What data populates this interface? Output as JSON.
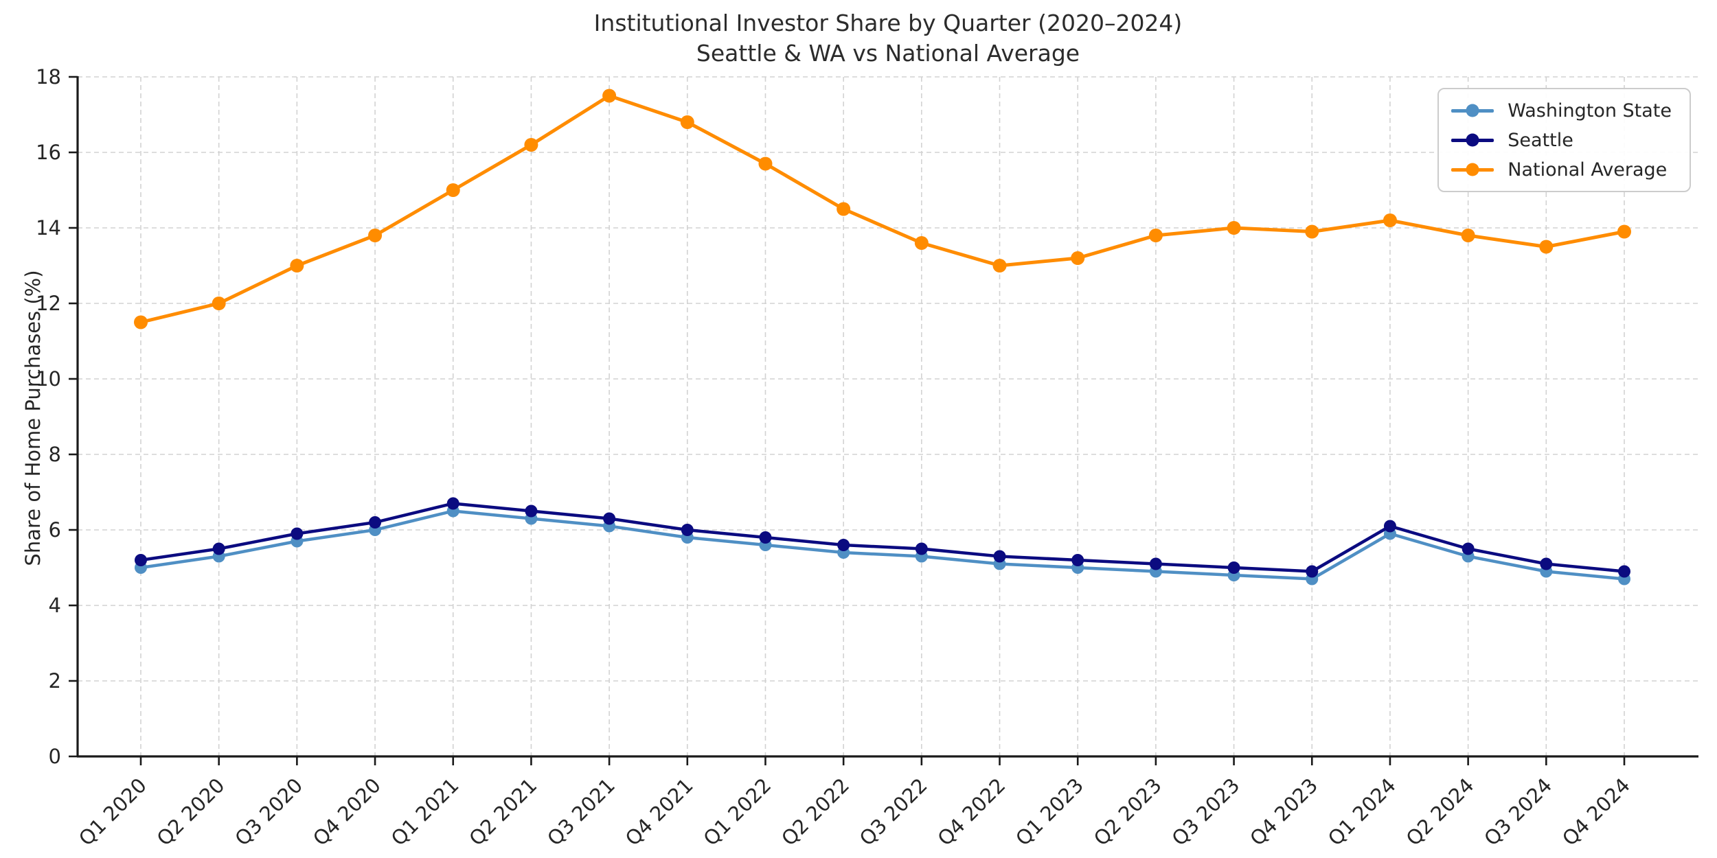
{
  "chart_data": {
    "type": "line",
    "title": "Institutional Investor Share by Quarter (2020–2024)",
    "subtitle": "Seattle & WA vs National Average",
    "ylabel": "Share of Home Purchases (%)",
    "ylim": [
      0,
      18
    ],
    "ytick_step": 2,
    "grid": "dashed-both-axes",
    "legend_position": "top-right",
    "categories": [
      "Q1 2020",
      "Q2 2020",
      "Q3 2020",
      "Q4 2020",
      "Q1 2021",
      "Q2 2021",
      "Q3 2021",
      "Q4 2021",
      "Q1 2022",
      "Q2 2022",
      "Q3 2022",
      "Q4 2022",
      "Q1 2023",
      "Q2 2023",
      "Q3 2023",
      "Q4 2023",
      "Q1 2024",
      "Q2 2024",
      "Q3 2024",
      "Q4 2024"
    ],
    "series": [
      {
        "name": "Washington State",
        "color": "#4f8fc4",
        "values": [
          5.0,
          5.3,
          5.7,
          6.0,
          6.5,
          6.3,
          6.1,
          5.8,
          5.6,
          5.4,
          5.3,
          5.1,
          5.0,
          4.9,
          4.8,
          4.7,
          5.9,
          5.3,
          4.9,
          4.7
        ]
      },
      {
        "name": "Seattle",
        "color": "#0b0b80",
        "values": [
          5.2,
          5.5,
          5.9,
          6.2,
          6.7,
          6.5,
          6.3,
          6.0,
          5.8,
          5.6,
          5.5,
          5.3,
          5.2,
          5.1,
          5.0,
          4.9,
          6.1,
          5.5,
          5.1,
          4.9
        ]
      },
      {
        "name": "National Average",
        "color": "#ff8c00",
        "values": [
          11.5,
          12.0,
          13.0,
          13.8,
          15.0,
          16.2,
          17.5,
          16.8,
          15.7,
          14.5,
          13.6,
          13.0,
          13.2,
          13.8,
          14.0,
          13.9,
          14.2,
          13.8,
          13.5,
          13.9
        ]
      }
    ],
    "axis_colors": {
      "spine": "#1a1a1a",
      "grid": "#d2d2d2",
      "tick_label": "#262626"
    }
  }
}
